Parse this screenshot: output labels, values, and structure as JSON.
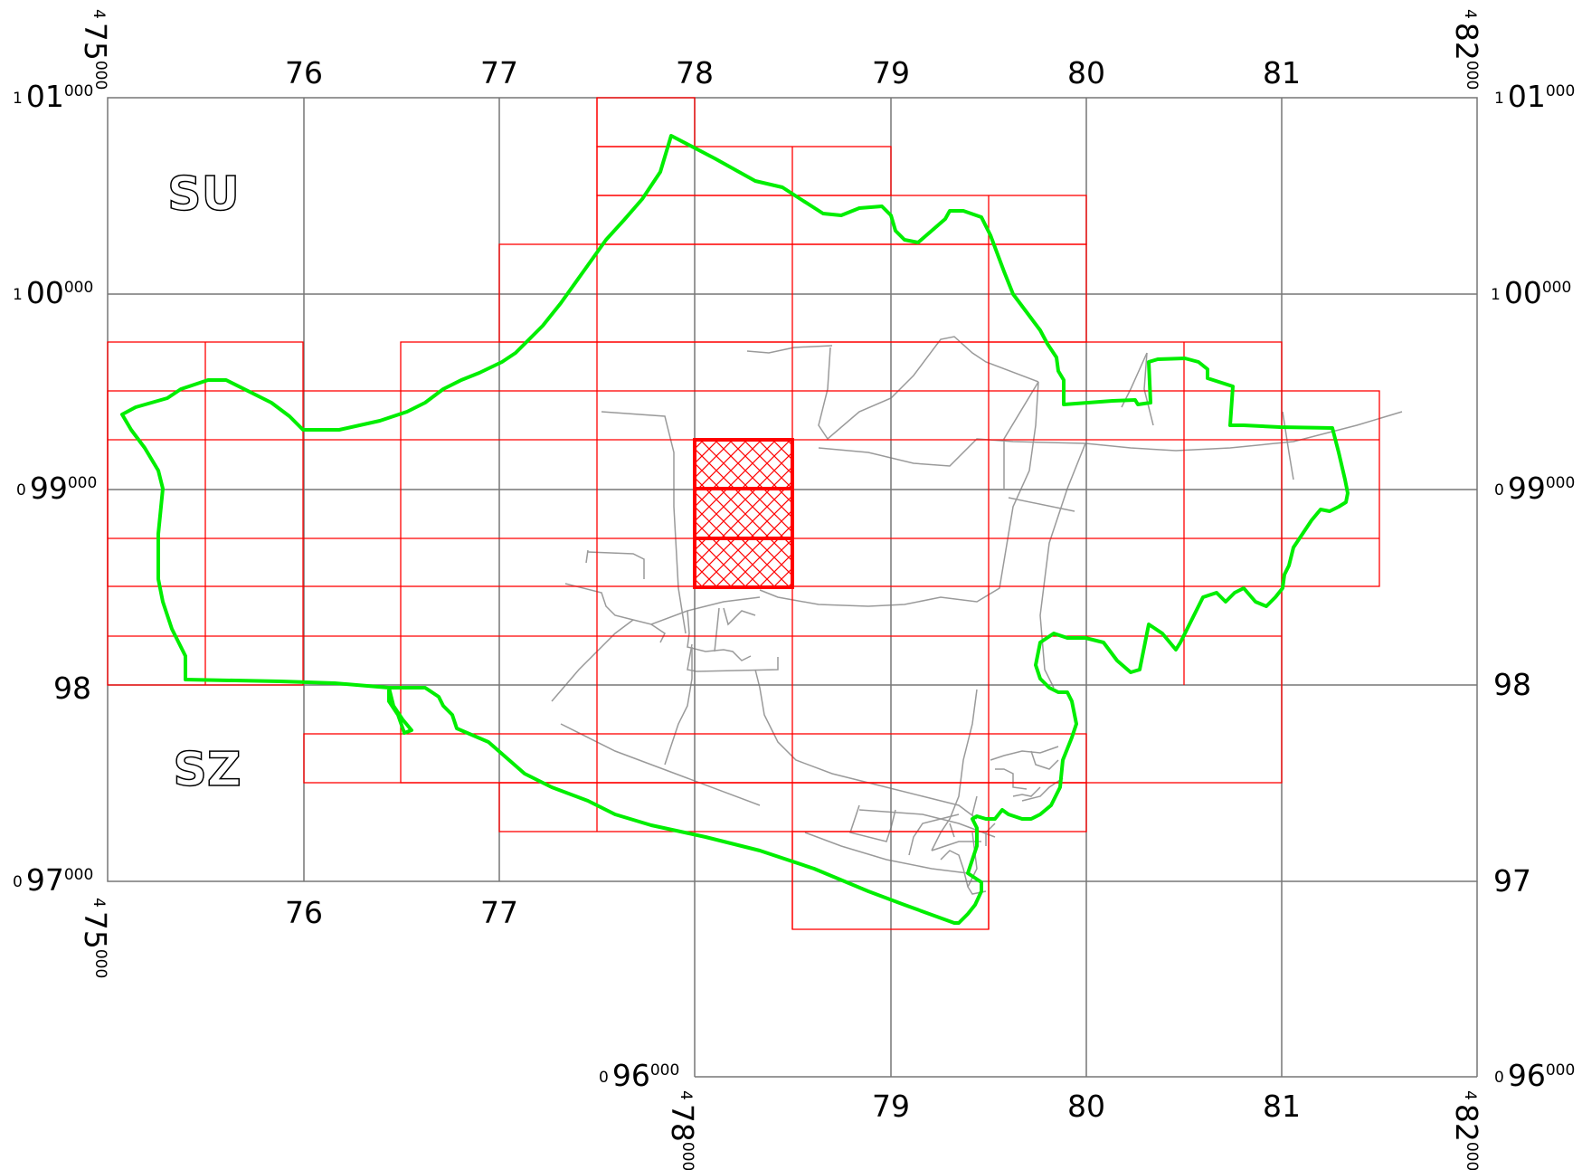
{
  "map": {
    "colors": {
      "grid": "#777777",
      "tile_outline": "#ff0000",
      "highlight": "#ff0000",
      "boundary": "#00ee00",
      "roads": "#9a9a9a",
      "background": "#ffffff"
    },
    "sheet_labels": {
      "north": "SU",
      "south": "SZ"
    },
    "top_labels": [
      "76",
      "77",
      "78",
      "79",
      "80",
      "81"
    ],
    "bottom_labels_west": [
      "76",
      "77"
    ],
    "bottom_labels_east": [
      "79",
      "80",
      "81"
    ],
    "corner_easting_left": {
      "prefix": "4",
      "value": "75",
      "suffix": "000"
    },
    "corner_easting_right": {
      "prefix": "4",
      "value": "82",
      "suffix": "000"
    },
    "corner_easting_bottom": {
      "prefix": "4",
      "value": "78",
      "suffix": "000"
    },
    "left_labels": [
      {
        "prefix": "1",
        "value": "01",
        "suffix": "000"
      },
      {
        "prefix": "1",
        "value": "00",
        "suffix": "000"
      },
      {
        "prefix": "0",
        "value": "99",
        "suffix": "000"
      },
      {
        "prefix": "",
        "value": "98",
        "suffix": ""
      },
      {
        "prefix": "0",
        "value": "97",
        "suffix": "000"
      }
    ],
    "right_labels": [
      {
        "prefix": "1",
        "value": "01",
        "suffix": "000"
      },
      {
        "prefix": "1",
        "value": "00",
        "suffix": "000"
      },
      {
        "prefix": "0",
        "value": "99",
        "suffix": "000"
      },
      {
        "prefix": "",
        "value": "98",
        "suffix": ""
      },
      {
        "prefix": "",
        "value": "97",
        "suffix": ""
      },
      {
        "prefix": "0",
        "value": "96",
        "suffix": "000"
      }
    ],
    "bottom_left_northing": {
      "prefix": "0",
      "value": "96",
      "suffix": "000"
    }
  }
}
